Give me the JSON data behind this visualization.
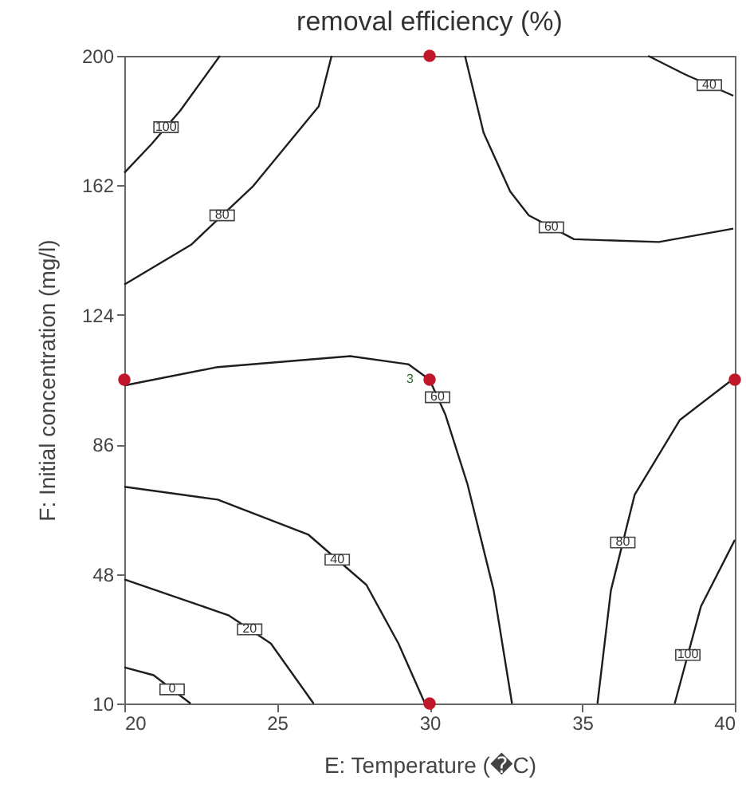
{
  "chart_data": {
    "type": "line",
    "title": "removal efficiency (%)",
    "xlabel": "E: Temperature (�C)",
    "ylabel": "F: Initial concentration (mg/l)",
    "xlim": [
      20,
      40
    ],
    "xticks": [
      20,
      25,
      30,
      35,
      40
    ],
    "ylim": [
      10,
      200
    ],
    "yticks": [
      10,
      48,
      86,
      124,
      162,
      200
    ],
    "grid": false,
    "line_style": "solid",
    "series": [
      {
        "name": "100",
        "color": "#1e1e1e",
        "x": [
          23.13,
          21.83,
          20.9,
          20,
          null,
          40,
          38.89,
          38.03
        ],
        "values": [
          200,
          183.9,
          174.2,
          165.7,
          null,
          58,
          38.5,
          10
        ]
      },
      {
        "name": "80",
        "color": "#1e1e1e",
        "x": [
          26.79,
          26.37,
          24.22,
          22.19,
          20,
          null,
          40,
          38.2,
          36.72,
          35.94,
          35.5
        ],
        "values": [
          200,
          185.2,
          161.8,
          144.6,
          132.9,
          null,
          105.6,
          93.2,
          71.3,
          43.2,
          10
        ]
      },
      {
        "name": "60",
        "color": "#1e1e1e",
        "x": [
          31.16,
          31.77,
          32.64,
          33.25,
          34.73,
          37.51,
          39.95,
          null,
          20,
          23.06,
          27.4,
          29.31,
          30,
          30.52,
          31.24,
          32.1,
          32.7
        ],
        "values": [
          200,
          177.4,
          160.2,
          153.2,
          146.2,
          145.4,
          149.3,
          null,
          103.3,
          108.7,
          111.9,
          109.5,
          105,
          94.7,
          74.4,
          43.2,
          10
        ]
      },
      {
        "name": "40",
        "color": "#1e1e1e",
        "x": [
          37.16,
          38.38,
          39.95,
          null,
          20,
          23.06,
          26.02,
          27.93,
          28.98,
          29.85
        ],
        "values": [
          200,
          194.5,
          188.3,
          null,
          73.6,
          69.8,
          59.6,
          44.8,
          27.6,
          10
        ]
      },
      {
        "name": "20",
        "color": "#1e1e1e",
        "x": [
          20,
          23.41,
          24.8,
          26.2
        ],
        "values": [
          46.4,
          35.9,
          27.6,
          10
        ]
      },
      {
        "name": "0",
        "color": "#1e1e1e",
        "x": [
          20,
          20.96,
          22.17
        ],
        "values": [
          20.6,
          18.3,
          10
        ]
      },
      {
        "type": "scatter",
        "marker": "circle",
        "color": "#c0182a",
        "x": [
          20,
          30,
          30,
          30,
          40
        ],
        "values": [
          105,
          200,
          105,
          10,
          105
        ]
      }
    ],
    "annotations": [
      {
        "text": "3",
        "x": 30,
        "y": 105
      }
    ]
  }
}
